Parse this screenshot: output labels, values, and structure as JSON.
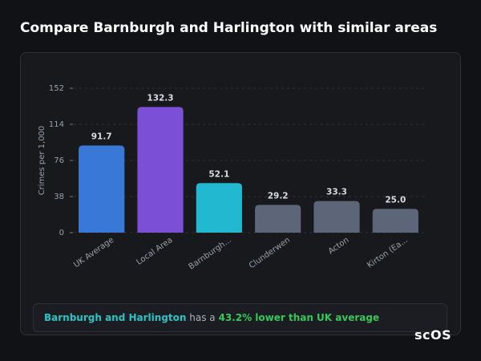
{
  "chart_data": {
    "type": "bar",
    "title": "Compare Barnburgh and Harlington with similar areas",
    "y_label": "Crimes per 1,000",
    "categories": [
      "UK Average",
      "Local Area",
      "Barnburgh...",
      "Clunderwen",
      "Acton",
      "Kirton (Ea..."
    ],
    "values": [
      91.7,
      132.3,
      52.1,
      29.2,
      33.3,
      25.0
    ],
    "value_labels": [
      "91.7",
      "132.3",
      "52.1",
      "29.2",
      "33.3",
      "25.0"
    ],
    "colors": [
      "#3a78d8",
      "#7b4fd6",
      "#22b8cf",
      "#5c6678",
      "#5c6678",
      "#5c6678"
    ],
    "ylim": [
      0,
      152
    ],
    "yticks": [
      0,
      38,
      76,
      114,
      152
    ],
    "grid": true
  },
  "summary": {
    "area": "Barnburgh and Harlington",
    "connector": "has a",
    "comparison": "43.2% lower than UK average"
  },
  "logo": "scOS"
}
